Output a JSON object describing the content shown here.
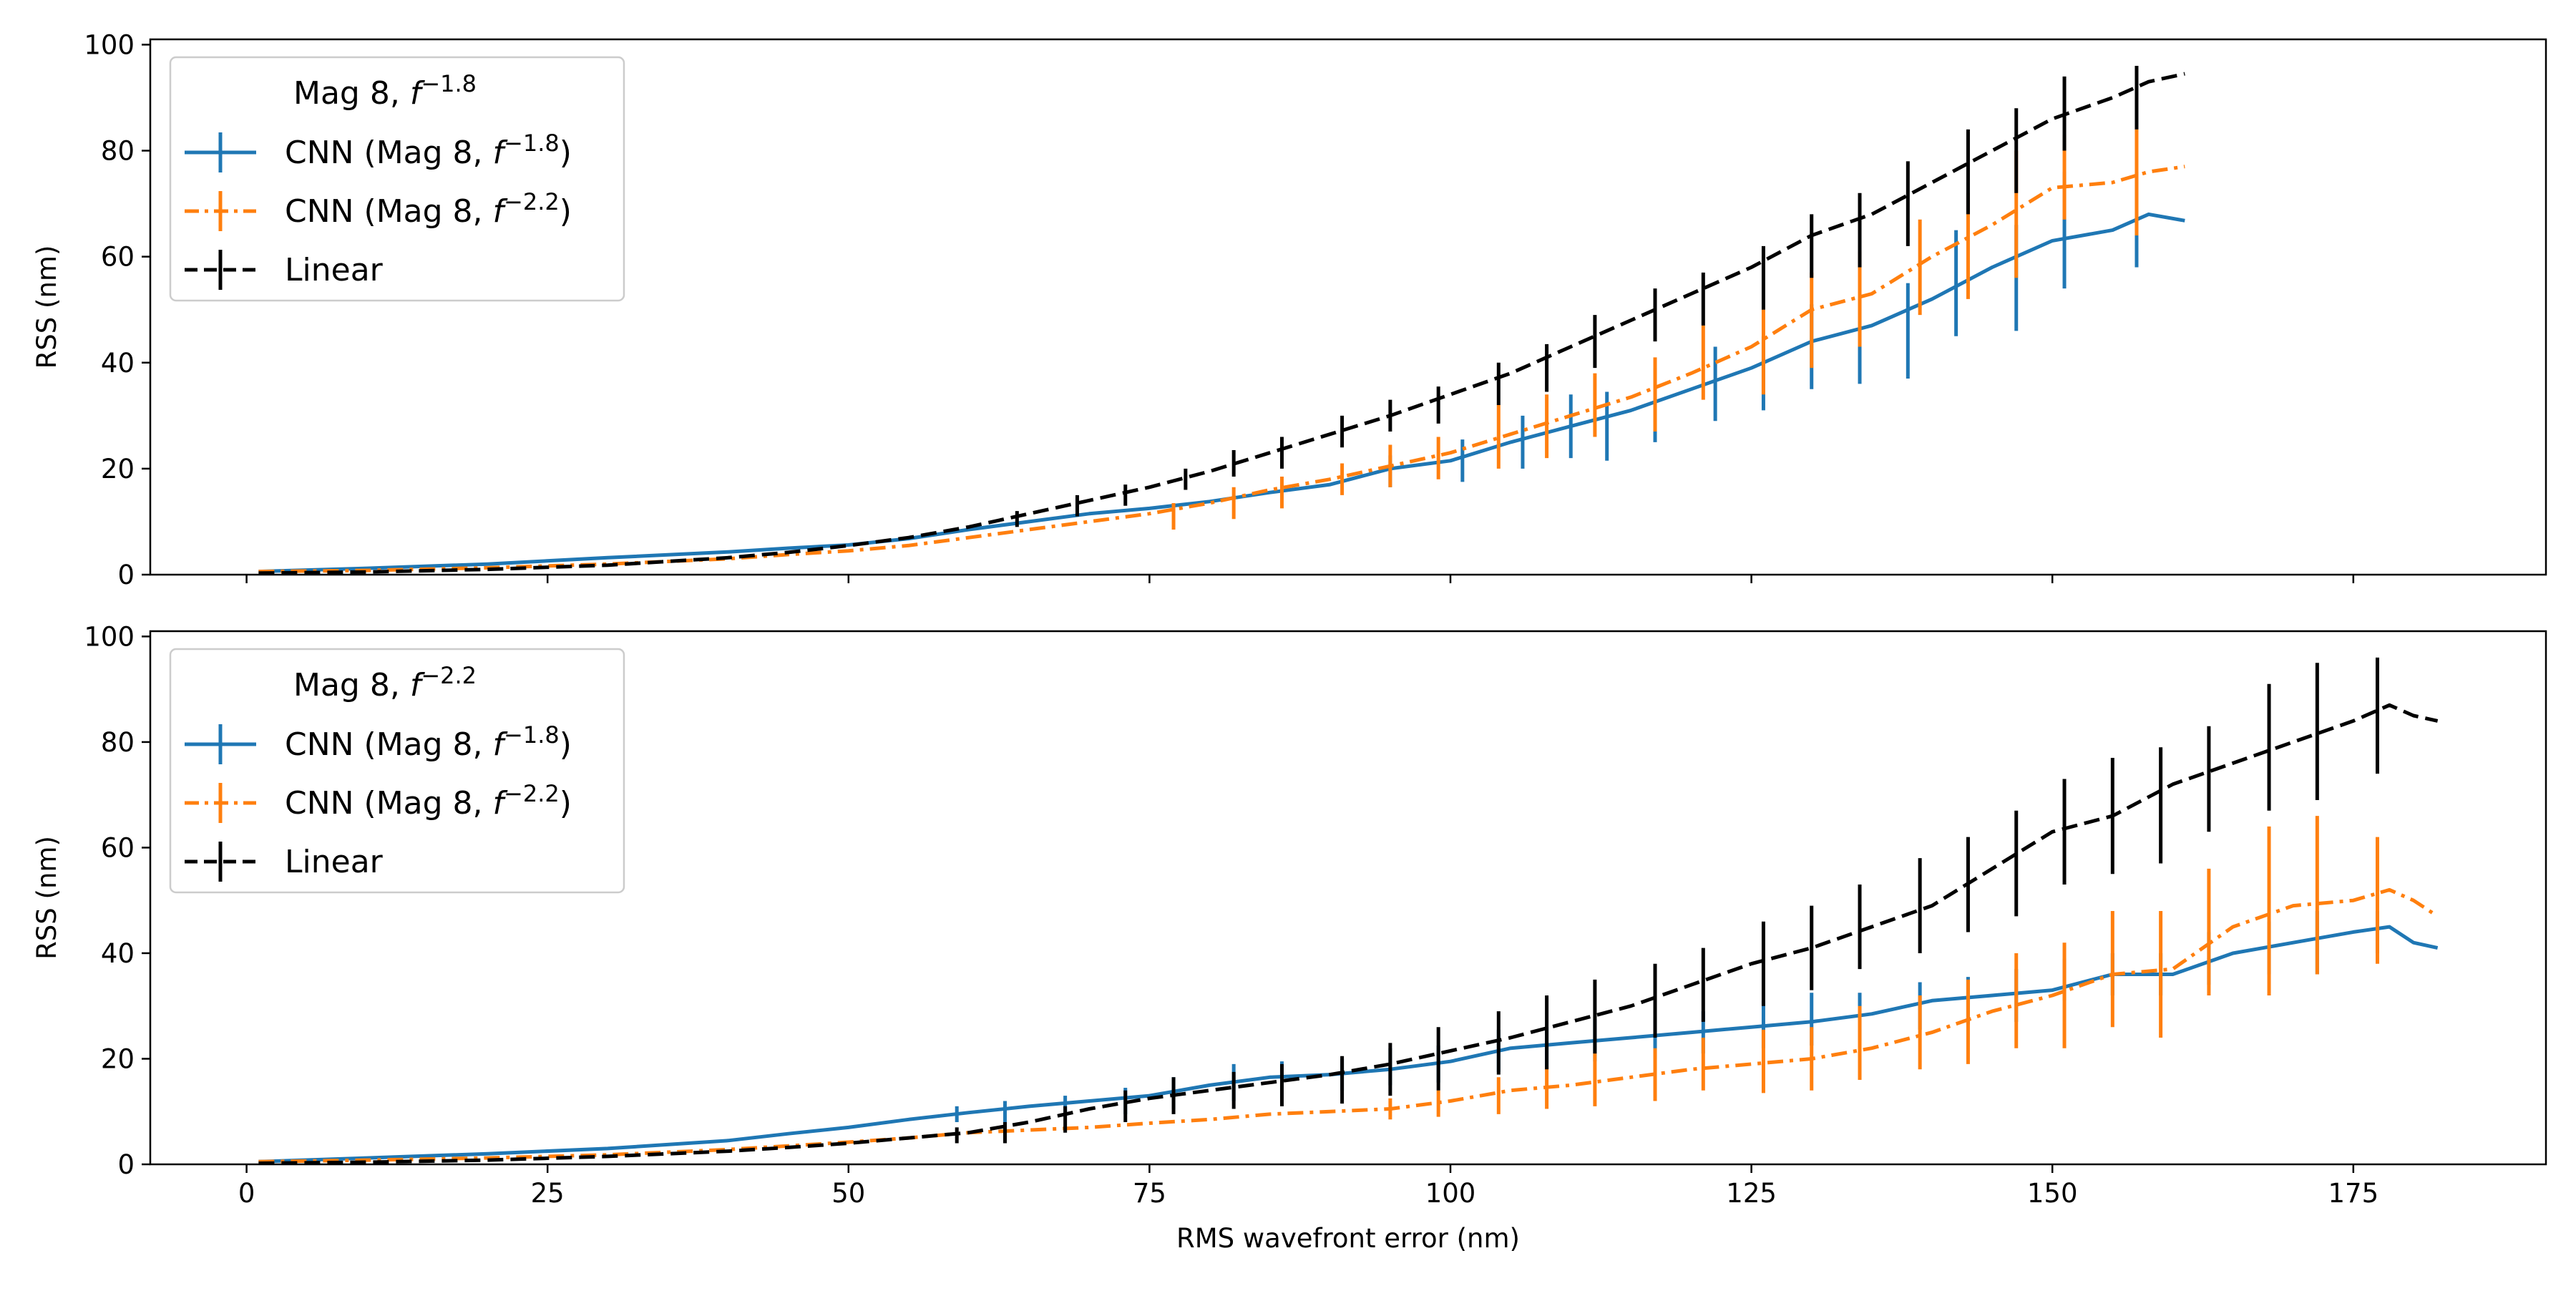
{
  "chart_data": [
    {
      "type": "line",
      "legend_title": "Mag 8, f",
      "legend_title_exp": "−1.8",
      "xlabel": "",
      "ylabel": "RSS (nm)",
      "xlim": [
        -8,
        191
      ],
      "ylim": [
        0,
        101
      ],
      "xticks": [
        0,
        25,
        50,
        75,
        100,
        125,
        150,
        175
      ],
      "yticks": [
        0,
        20,
        40,
        60,
        80,
        100
      ],
      "legend_position": "upper-left",
      "grid": false,
      "series": [
        {
          "name": "CNN (Mag 8, f",
          "name_exp": "−1.8",
          "name_close": ")",
          "color": "#1f77b4",
          "style": "solid",
          "x": [
            1,
            10,
            20,
            30,
            40,
            45,
            50,
            55,
            60,
            65,
            70,
            75,
            80,
            85,
            90,
            95,
            100,
            105,
            110,
            115,
            120,
            125,
            130,
            135,
            140,
            145,
            150,
            155,
            158,
            161
          ],
          "y": [
            0.6,
            1.2,
            2.0,
            3.2,
            4.3,
            5.0,
            5.6,
            6.8,
            8.5,
            10.0,
            11.5,
            12.5,
            13.8,
            15.5,
            17.0,
            20.0,
            21.5,
            25.0,
            28.0,
            31.0,
            35.0,
            39.0,
            44.0,
            47.0,
            52.0,
            58.0,
            63.0,
            65.0,
            68.0,
            66.8
          ],
          "err_x": [
            95,
            101,
            106,
            110,
            113,
            117,
            122,
            126,
            130,
            134,
            138,
            142,
            147,
            151,
            157
          ],
          "err_y": [
            19.5,
            21.5,
            25.0,
            28.0,
            28.0,
            32.0,
            36.0,
            38.0,
            43.0,
            44.0,
            46.0,
            55.0,
            56.0,
            65.0,
            67.0
          ],
          "err_e": [
            3.0,
            4.0,
            5.0,
            6.0,
            6.5,
            7.0,
            7.0,
            7.0,
            8.0,
            8.0,
            9.0,
            10.0,
            10.0,
            11.0,
            9.0
          ]
        },
        {
          "name": "CNN (Mag 8, f",
          "name_exp": "−2.2",
          "name_close": ")",
          "color": "#ff7f0e",
          "style": "dashdot",
          "x": [
            1,
            10,
            20,
            30,
            40,
            45,
            50,
            55,
            60,
            65,
            70,
            75,
            80,
            85,
            90,
            95,
            100,
            105,
            110,
            115,
            120,
            125,
            130,
            135,
            140,
            145,
            150,
            155,
            158,
            161
          ],
          "y": [
            0.6,
            0.8,
            1.3,
            2.0,
            3.0,
            3.8,
            4.5,
            5.5,
            7.0,
            8.5,
            10.0,
            11.5,
            13.5,
            16.0,
            18.0,
            20.5,
            23.0,
            26.5,
            30.0,
            33.5,
            38.0,
            43.0,
            50.0,
            53.0,
            60.0,
            66.0,
            73.0,
            74.0,
            76.0,
            77.0
          ],
          "err_x": [
            77,
            82,
            86,
            91,
            95,
            99,
            104,
            108,
            112,
            117,
            121,
            126,
            130,
            134,
            139,
            143,
            147,
            151,
            157
          ],
          "err_y": [
            11.0,
            13.5,
            15.5,
            18.0,
            20.5,
            22.0,
            26.0,
            28.0,
            32.0,
            34.0,
            40.0,
            42.0,
            48.0,
            52.0,
            58.0,
            62.0,
            68.0,
            75.0,
            74.0
          ],
          "err_e": [
            2.5,
            3.0,
            3.0,
            3.0,
            4.0,
            4.0,
            6.0,
            6.0,
            6.0,
            7.0,
            7.0,
            8.0,
            9.0,
            9.0,
            9.0,
            10.0,
            12.0,
            8.0,
            10.0
          ]
        },
        {
          "name": "Linear",
          "name_exp": "",
          "name_close": "",
          "color": "#000000",
          "style": "dashed",
          "x": [
            1,
            10,
            20,
            30,
            40,
            45,
            50,
            55,
            60,
            65,
            70,
            75,
            80,
            85,
            90,
            95,
            100,
            105,
            110,
            115,
            120,
            125,
            130,
            135,
            140,
            145,
            150,
            155,
            158,
            161
          ],
          "y": [
            0.3,
            0.5,
            1.0,
            1.8,
            3.2,
            4.2,
            5.5,
            7.0,
            9.0,
            11.5,
            14.0,
            16.5,
            19.5,
            23.0,
            26.5,
            30.0,
            34.0,
            38.0,
            43.0,
            48.0,
            53.0,
            58.0,
            64.0,
            68.0,
            74.0,
            80.0,
            86.0,
            90.0,
            93.0,
            94.5
          ],
          "err_x": [
            64,
            69,
            73,
            78,
            82,
            86,
            91,
            95,
            99,
            104,
            108,
            112,
            117,
            121,
            126,
            130,
            134,
            138,
            143,
            147,
            151,
            157
          ],
          "err_y": [
            10.5,
            13.0,
            15.0,
            18.0,
            21.0,
            23.0,
            27.0,
            30.0,
            32.0,
            36.0,
            39.0,
            44.0,
            49.0,
            52.0,
            56.0,
            62.0,
            65.0,
            70.0,
            76.0,
            80.0,
            87.0,
            90.0
          ],
          "err_e": [
            1.5,
            2.0,
            2.0,
            2.0,
            2.5,
            3.0,
            3.0,
            3.0,
            3.5,
            4.0,
            4.5,
            5.0,
            5.0,
            5.0,
            6.0,
            6.0,
            7.0,
            8.0,
            8.0,
            8.0,
            7.0,
            6.0
          ]
        }
      ]
    },
    {
      "type": "line",
      "legend_title": "Mag 8, f",
      "legend_title_exp": "−2.2",
      "xlabel": "RMS wavefront error (nm)",
      "ylabel": "RSS (nm)",
      "xlim": [
        -8,
        191
      ],
      "ylim": [
        0,
        101
      ],
      "xticks": [
        0,
        25,
        50,
        75,
        100,
        125,
        150,
        175
      ],
      "yticks": [
        0,
        20,
        40,
        60,
        80,
        100
      ],
      "legend_position": "upper-left",
      "grid": false,
      "series": [
        {
          "name": "CNN (Mag 8, f",
          "name_exp": "−1.8",
          "name_close": ")",
          "color": "#1f77b4",
          "style": "solid",
          "x": [
            1,
            10,
            20,
            30,
            40,
            45,
            50,
            55,
            60,
            65,
            70,
            75,
            80,
            85,
            90,
            95,
            100,
            105,
            110,
            115,
            120,
            125,
            130,
            135,
            140,
            145,
            150,
            155,
            160,
            165,
            170,
            175,
            178,
            180,
            182
          ],
          "y": [
            0.5,
            1.2,
            2.0,
            3.0,
            4.5,
            5.8,
            7.0,
            8.5,
            9.8,
            11.0,
            12.0,
            13.0,
            15.0,
            16.5,
            17.0,
            18.0,
            19.5,
            22.0,
            23.0,
            24.0,
            25.0,
            26.0,
            27.0,
            28.5,
            31.0,
            32.0,
            33.0,
            36.0,
            36.0,
            40.0,
            42.0,
            44.0,
            45.0,
            42.0,
            41.0
          ],
          "err_x": [
            59,
            63,
            68,
            73,
            77,
            82,
            86,
            91,
            95,
            99,
            104,
            108,
            112,
            117,
            121,
            126,
            130,
            134,
            139,
            143,
            147,
            151,
            155,
            159,
            163,
            168,
            172,
            177
          ],
          "err_y": [
            9.5,
            10.0,
            11.0,
            12.0,
            13.5,
            15.5,
            16.0,
            17.0,
            18.5,
            19.0,
            21.5,
            22.0,
            23.5,
            24.0,
            25.0,
            26.5,
            27.5,
            28.0,
            30.0,
            31.0,
            32.0,
            35.0,
            36.0,
            36.0,
            39.0,
            41.0,
            42.0,
            44.0
          ],
          "err_e": [
            1.5,
            2.0,
            2.0,
            2.5,
            3.0,
            3.5,
            3.5,
            3.0,
            3.5,
            3.5,
            4.0,
            4.0,
            4.0,
            4.0,
            4.0,
            4.5,
            5.0,
            4.5,
            4.5,
            4.5,
            5.0,
            4.0,
            4.0,
            4.0,
            5.0,
            5.0,
            6.0,
            4.0
          ]
        },
        {
          "name": "CNN (Mag 8, f",
          "name_exp": "−2.2",
          "name_close": ")",
          "color": "#ff7f0e",
          "style": "dashdot",
          "x": [
            1,
            10,
            20,
            30,
            40,
            45,
            50,
            55,
            60,
            65,
            70,
            75,
            80,
            85,
            90,
            95,
            100,
            105,
            110,
            115,
            120,
            125,
            130,
            135,
            140,
            145,
            150,
            155,
            160,
            165,
            170,
            175,
            178,
            180,
            182
          ],
          "y": [
            0.5,
            0.8,
            1.2,
            1.8,
            2.8,
            3.5,
            4.2,
            5.0,
            6.0,
            6.5,
            7.0,
            7.8,
            8.5,
            9.5,
            10.0,
            10.5,
            12.0,
            14.0,
            15.0,
            16.5,
            18.0,
            19.0,
            20.0,
            22.0,
            25.0,
            29.0,
            32.0,
            36.0,
            37.0,
            45.0,
            49.0,
            50.0,
            52.0,
            50.0,
            47.0
          ],
          "err_x": [
            95,
            99,
            104,
            108,
            112,
            117,
            121,
            126,
            130,
            134,
            139,
            143,
            147,
            151,
            155,
            159,
            163,
            168,
            172,
            177
          ],
          "err_y": [
            10.5,
            11.5,
            13.0,
            14.5,
            16.0,
            17.0,
            19.0,
            19.5,
            20.0,
            23.0,
            25.0,
            27.0,
            31.0,
            32.0,
            37.0,
            36.0,
            44.0,
            48.0,
            51.0,
            50.0
          ],
          "err_e": [
            2.0,
            2.5,
            3.5,
            4.0,
            5.0,
            5.0,
            5.0,
            6.0,
            6.0,
            7.0,
            7.0,
            8.0,
            9.0,
            10.0,
            11.0,
            12.0,
            12.0,
            16.0,
            15.0,
            12.0
          ]
        },
        {
          "name": "Linear",
          "name_exp": "",
          "name_close": "",
          "color": "#000000",
          "style": "dashed",
          "x": [
            1,
            10,
            20,
            30,
            40,
            45,
            50,
            55,
            60,
            65,
            70,
            75,
            80,
            85,
            90,
            95,
            100,
            105,
            110,
            115,
            120,
            125,
            130,
            135,
            140,
            145,
            150,
            155,
            160,
            165,
            170,
            175,
            178,
            180,
            182
          ],
          "y": [
            0.2,
            0.4,
            0.8,
            1.5,
            2.5,
            3.2,
            4.0,
            5.0,
            6.0,
            8.0,
            10.5,
            12.5,
            14.0,
            15.5,
            17.0,
            19.0,
            21.5,
            24.0,
            27.0,
            30.0,
            34.0,
            38.0,
            41.0,
            45.0,
            49.0,
            56.0,
            63.0,
            66.0,
            72.0,
            76.0,
            80.0,
            84.0,
            87.0,
            85.0,
            84.0
          ],
          "err_x": [
            59,
            63,
            68,
            73,
            77,
            82,
            86,
            91,
            95,
            99,
            104,
            108,
            112,
            117,
            121,
            126,
            130,
            134,
            139,
            143,
            147,
            151,
            155,
            159,
            163,
            168,
            172,
            177
          ],
          "err_y": [
            5.5,
            6.0,
            8.5,
            11.0,
            13.0,
            14.0,
            15.0,
            16.0,
            18.0,
            20.0,
            23.0,
            25.0,
            28.0,
            31.0,
            34.0,
            38.0,
            41.0,
            45.0,
            49.0,
            53.0,
            57.0,
            63.0,
            66.0,
            68.0,
            73.0,
            79.0,
            82.0,
            85.0
          ],
          "err_e": [
            1.5,
            2.0,
            2.5,
            3.0,
            3.5,
            3.5,
            4.0,
            4.5,
            5.0,
            6.0,
            6.0,
            7.0,
            7.0,
            7.0,
            7.0,
            8.0,
            8.0,
            8.0,
            9.0,
            9.0,
            10.0,
            10.0,
            11.0,
            11.0,
            10.0,
            12.0,
            13.0,
            11.0
          ]
        }
      ]
    }
  ]
}
